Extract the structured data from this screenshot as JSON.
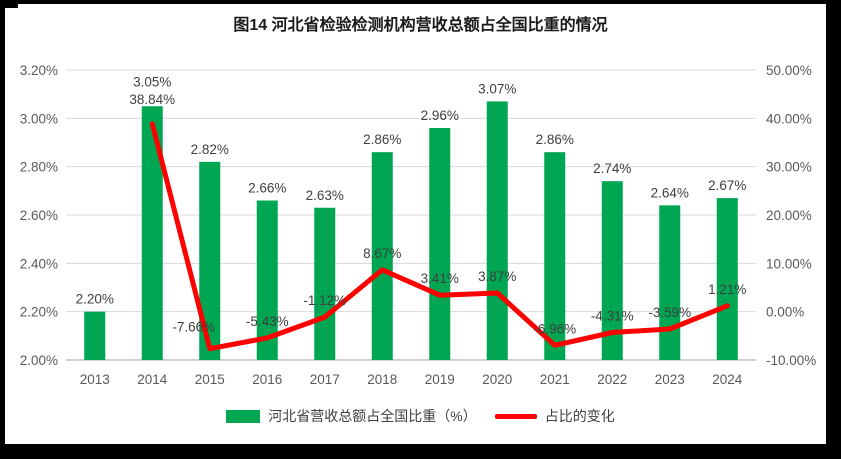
{
  "chart_data": {
    "type": "bar",
    "title": "图14 河北省检验检测机构营收总额占全国比重的情况",
    "categories": [
      "2013",
      "2014",
      "2015",
      "2016",
      "2017",
      "2018",
      "2019",
      "2020",
      "2021",
      "2022",
      "2023",
      "2024"
    ],
    "series": [
      {
        "name": "河北省营收总额占全国比重（%）",
        "kind": "bar",
        "axis": "left",
        "color": "#00A651",
        "values": [
          2.2,
          3.05,
          2.82,
          2.66,
          2.63,
          2.86,
          2.96,
          3.07,
          2.86,
          2.74,
          2.64,
          2.67
        ],
        "labels": [
          "2.20%",
          "3.05%",
          "2.82%",
          "2.66%",
          "2.63%",
          "2.86%",
          "2.96%",
          "3.07%",
          "2.86%",
          "2.74%",
          "2.64%",
          "2.67%"
        ]
      },
      {
        "name": "占比的变化",
        "kind": "line",
        "axis": "right",
        "color": "#FE0000",
        "values": [
          null,
          38.84,
          -7.66,
          -5.43,
          -1.12,
          8.67,
          3.41,
          3.87,
          -6.96,
          -4.31,
          -3.59,
          1.21
        ],
        "labels": [
          null,
          "38.84%",
          "-7.66%",
          "-5.43%",
          "-1.12%",
          "8.67%",
          "3.41%",
          "3.87%",
          "-6.96%",
          "-4.31%",
          "-3.59%",
          "1.21%"
        ]
      }
    ],
    "left_axis": {
      "min": 2.0,
      "max": 3.2,
      "step": 0.2,
      "tick_labels": [
        "2.00%",
        "2.20%",
        "2.40%",
        "2.60%",
        "2.80%",
        "3.00%",
        "3.20%"
      ]
    },
    "right_axis": {
      "min": -10,
      "max": 50,
      "step": 10,
      "tick_labels": [
        "-10.00%",
        "0.00%",
        "10.00%",
        "20.00%",
        "30.00%",
        "40.00%",
        "50.00%"
      ]
    },
    "grid": true,
    "legend_position": "bottom",
    "xlabel": "",
    "ylabel": ""
  },
  "colors": {
    "grid": "#D9D9D9",
    "axis_line": "#BFBFBF",
    "tick_text": "#595959",
    "data_label": "#3F3F3F",
    "title_text": "#1A1A1A"
  }
}
